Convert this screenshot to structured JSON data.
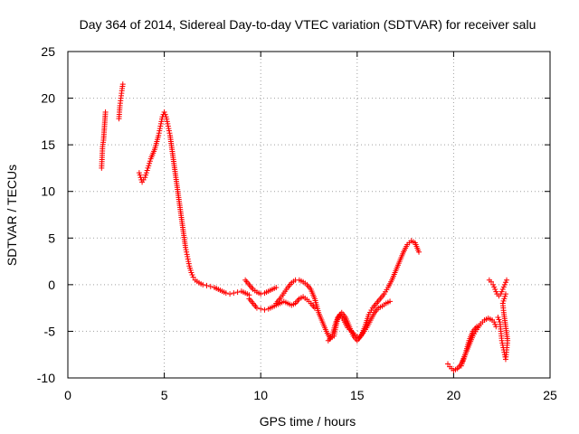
{
  "chart_data": {
    "type": "scatter",
    "title": "Day 364 of 2014, Sidereal Day-to-day VTEC variation (SDTVAR) for receiver salu",
    "xlabel": "GPS time / hours",
    "ylabel": "SDTVAR / TECUs",
    "xlim": [
      0,
      25
    ],
    "ylim": [
      -10,
      25
    ],
    "xticks": [
      0,
      5,
      10,
      15,
      20,
      25
    ],
    "yticks": [
      -10,
      -5,
      0,
      5,
      10,
      15,
      20,
      25
    ],
    "xtick_labels": [
      "0",
      "5",
      "10",
      "15",
      "20",
      "25"
    ],
    "ytick_labels": [
      "-10",
      "-5",
      "0",
      "5",
      "10",
      "15",
      "20",
      "25"
    ],
    "grid": true,
    "legend": "none",
    "series": [
      {
        "name": "SDTVAR",
        "marker": "+",
        "color": "#ff0000",
        "segments": [
          {
            "x": [
              1.75,
              1.8,
              1.85,
              1.9,
              1.95
            ],
            "y": [
              12.5,
              14.8,
              15.5,
              17.0,
              18.5
            ]
          },
          {
            "x": [
              2.65,
              2.7,
              2.75,
              2.8,
              2.85
            ],
            "y": [
              17.8,
              19.2,
              20.0,
              20.8,
              21.5
            ]
          },
          {
            "x": [
              3.7,
              3.85,
              4.0,
              4.15,
              4.3,
              4.5,
              4.7,
              4.8,
              4.9,
              5.0,
              5.1,
              5.2,
              5.3,
              5.4,
              5.5,
              5.6,
              5.7,
              5.8,
              5.9,
              6.0,
              6.1,
              6.2,
              6.3,
              6.4,
              6.5,
              6.6,
              6.8,
              7.0,
              7.2,
              7.4,
              7.6,
              7.8,
              8.0,
              8.2,
              8.4,
              8.6,
              8.8,
              9.0,
              9.2,
              9.4
            ],
            "y": [
              12.0,
              11.0,
              11.5,
              12.5,
              13.5,
              14.5,
              16.0,
              17.0,
              18.0,
              18.5,
              18.0,
              17.0,
              16.0,
              14.5,
              13.0,
              11.5,
              10.0,
              8.5,
              7.0,
              5.5,
              4.0,
              3.0,
              2.0,
              1.3,
              0.8,
              0.5,
              0.2,
              0.0,
              -0.1,
              -0.2,
              -0.3,
              -0.5,
              -0.7,
              -0.9,
              -1.0,
              -0.9,
              -0.8,
              -0.7,
              -0.9,
              -1.1
            ]
          },
          {
            "x": [
              9.4,
              9.6,
              9.8,
              10.0,
              10.2,
              10.4,
              10.6,
              10.8,
              11.0,
              11.2,
              11.4,
              11.6,
              11.8,
              12.0,
              12.2,
              12.4,
              12.6,
              12.8
            ],
            "y": [
              -1.5,
              -2.0,
              -2.5,
              -2.6,
              -2.7,
              -2.6,
              -2.4,
              -2.2,
              -2.0,
              -1.8,
              -2.0,
              -2.2,
              -2.0,
              -1.5,
              -1.3,
              -1.6,
              -2.0,
              -2.5
            ]
          },
          {
            "x": [
              9.2,
              9.4,
              9.6,
              9.8,
              10.0,
              10.2,
              10.4,
              10.6,
              10.8
            ],
            "y": [
              0.5,
              0.0,
              -0.5,
              -0.8,
              -1.0,
              -0.9,
              -0.7,
              -0.5,
              -0.3
            ]
          },
          {
            "x": [
              10.8,
              11.0,
              11.2,
              11.4,
              11.6,
              11.8,
              12.0,
              12.2,
              12.4,
              12.6,
              12.8,
              13.0,
              13.2,
              13.4,
              13.6,
              13.8,
              14.0,
              14.2,
              14.4,
              14.6,
              14.8,
              15.0,
              15.2,
              15.4,
              15.6,
              15.8,
              16.0,
              16.2,
              16.4,
              16.6,
              16.8,
              17.0,
              17.2,
              17.4,
              17.6,
              17.8,
              18.0,
              18.2
            ],
            "y": [
              -2.0,
              -1.5,
              -0.9,
              -0.3,
              0.2,
              0.5,
              0.5,
              0.3,
              0.0,
              -0.5,
              -1.5,
              -3.0,
              -4.0,
              -5.0,
              -5.8,
              -5.5,
              -3.5,
              -3.0,
              -3.5,
              -4.5,
              -5.5,
              -6.0,
              -5.5,
              -4.5,
              -3.2,
              -2.5,
              -2.0,
              -1.5,
              -1.0,
              -0.3,
              0.5,
              1.5,
              2.5,
              3.5,
              4.3,
              4.7,
              4.5,
              3.5
            ]
          },
          {
            "x": [
              13.5,
              13.7,
              13.9,
              14.1,
              14.3,
              14.5,
              14.7,
              14.9,
              15.1,
              15.3,
              15.5,
              15.7,
              15.9,
              16.1,
              16.3,
              16.5,
              16.7
            ],
            "y": [
              -6.0,
              -5.5,
              -4.0,
              -3.2,
              -3.8,
              -4.6,
              -5.0,
              -5.4,
              -5.7,
              -5.2,
              -4.6,
              -3.8,
              -3.0,
              -2.5,
              -2.3,
              -2.0,
              -1.8
            ]
          },
          {
            "x": [
              19.7,
              19.8,
              19.9,
              20.0,
              20.2,
              20.4,
              20.6,
              20.8,
              21.0,
              21.2,
              21.4,
              21.6,
              21.8,
              22.0,
              22.1,
              22.2
            ],
            "y": [
              -8.5,
              -8.8,
              -9.0,
              -9.2,
              -9.0,
              -8.5,
              -7.5,
              -6.5,
              -5.5,
              -4.8,
              -4.2,
              -3.8,
              -3.6,
              -3.8,
              -4.0,
              -4.5
            ]
          },
          {
            "x": [
              20.4,
              20.6,
              20.8,
              21.0,
              21.2
            ],
            "y": [
              -8.7,
              -7.5,
              -6.0,
              -5.0,
              -4.5
            ]
          },
          {
            "x": [
              21.85,
              21.95,
              22.05,
              22.15,
              22.25,
              22.35,
              22.45,
              22.55,
              22.65,
              22.75
            ],
            "y": [
              0.5,
              0.3,
              0.0,
              -0.5,
              -1.0,
              -1.2,
              -1.0,
              -0.5,
              0.0,
              0.5
            ]
          },
          {
            "x": [
              22.3,
              22.4,
              22.45,
              22.5,
              22.55,
              22.6,
              22.65,
              22.7,
              22.75,
              22.8,
              22.6,
              22.55,
              22.7
            ],
            "y": [
              -3.5,
              -4.0,
              -5.0,
              -6.0,
              -6.5,
              -7.0,
              -7.5,
              -8.0,
              -7.0,
              -6.0,
              -3.0,
              -2.0,
              -1.0
            ]
          }
        ]
      }
    ]
  }
}
